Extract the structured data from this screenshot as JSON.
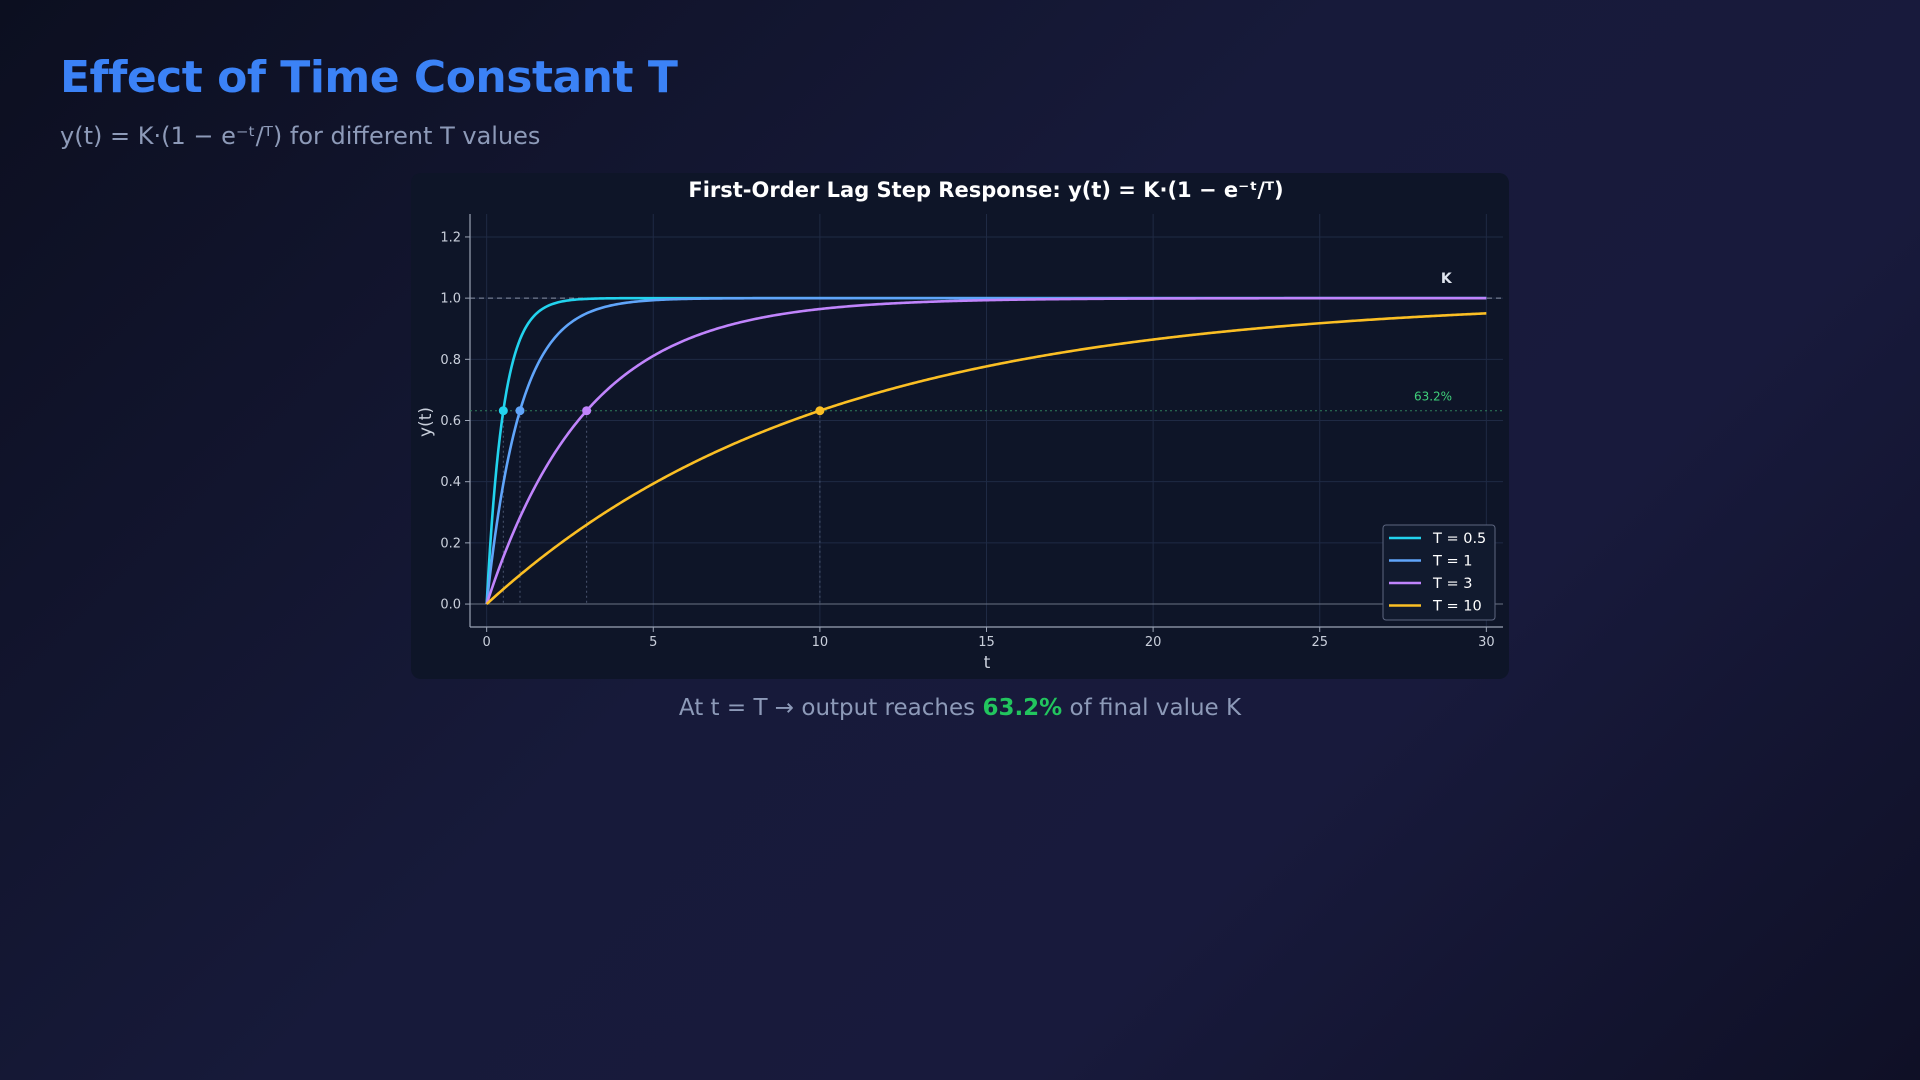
{
  "header": {
    "title": "Effect of Time Constant T",
    "subtitle": "y(t) = K·(1 − e⁻ᵗ/ᵀ) for different T values"
  },
  "caption": {
    "prefix": "At t = T → output reaches",
    "highlight": "63.2%",
    "suffix": "of final value K"
  },
  "colors": {
    "title": "#3b82f6",
    "highlight": "#22c55e",
    "grid": "#1f2a44",
    "axis": "#9aa3b5"
  },
  "chart_data": {
    "type": "line",
    "title": "First-Order Lag Step Response:  y(t) = K·(1 − e⁻ᵗ/ᵀ)",
    "xlabel": "t",
    "ylabel": "y(t)",
    "xlim": [
      -0.5,
      30.5
    ],
    "ylim": [
      -0.075,
      1.275
    ],
    "xticks": [
      0,
      5,
      10,
      15,
      20,
      25,
      30
    ],
    "yticks": [
      0.0,
      0.2,
      0.4,
      0.6,
      0.8,
      1.0,
      1.2
    ],
    "x_tick_labels": [
      "0",
      "5",
      "10",
      "15",
      "20",
      "25",
      "30"
    ],
    "y_tick_labels": [
      "0.0",
      "0.2",
      "0.4",
      "0.6",
      "0.8",
      "1.0",
      "1.2"
    ],
    "grid": true,
    "legend_position": "bottom-right",
    "K": 1.0,
    "function": "y = K*(1 - exp(-t/T))",
    "t_range": [
      0,
      30
    ],
    "series": [
      {
        "name": "T = 0.5",
        "T": 0.5,
        "color": "#22d3ee"
      },
      {
        "name": "T = 1",
        "T": 1,
        "color": "#60a5fa"
      },
      {
        "name": "T = 3",
        "T": 3,
        "color": "#c084fc"
      },
      {
        "name": "T = 10",
        "T": 10,
        "color": "#fbbf24"
      }
    ],
    "markers": [
      {
        "x": 0.5,
        "y": 0.632
      },
      {
        "x": 1,
        "y": 0.632
      },
      {
        "x": 3,
        "y": 0.632
      },
      {
        "x": 10,
        "y": 0.632
      }
    ],
    "reference_lines": [
      {
        "y": 1.0,
        "label": "K"
      },
      {
        "y": 0.632,
        "label": "63.2%"
      }
    ]
  }
}
